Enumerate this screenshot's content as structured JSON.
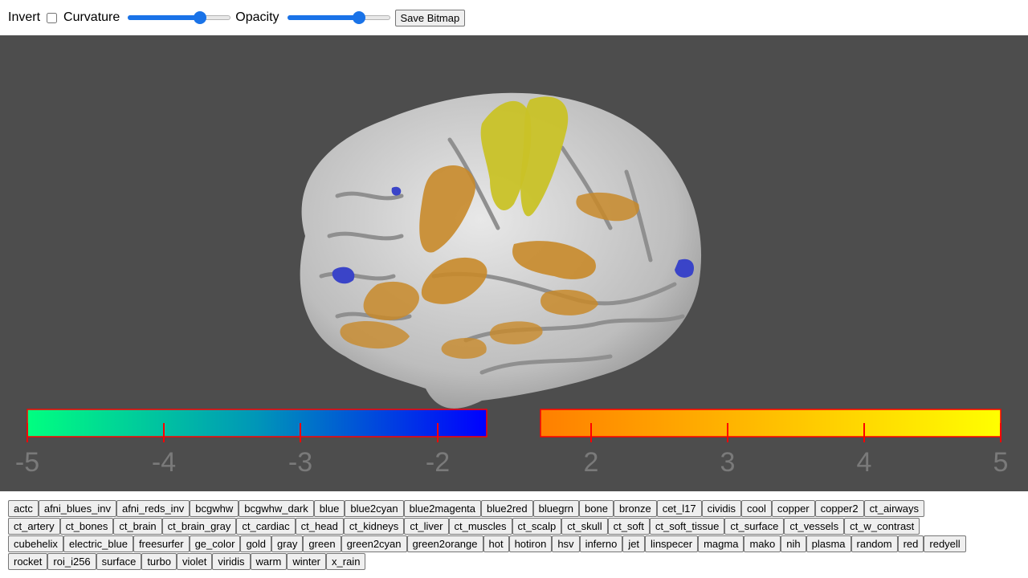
{
  "toolbar": {
    "invert_label": "Invert",
    "curvature_label": "Curvature",
    "curvature_value": 0.7,
    "opacity_label": "Opacity",
    "opacity_value": 0.7,
    "save_label": "Save Bitmap"
  },
  "colorbars": {
    "left": {
      "gradient": [
        "#00ff80",
        "#0000ff"
      ],
      "ticks": [
        "-5",
        "-4",
        "-3",
        "-2"
      ]
    },
    "right": {
      "gradient": [
        "#ff7f00",
        "#ffff00"
      ],
      "ticks": [
        "2",
        "3",
        "4",
        "5"
      ]
    },
    "border_color": "#ff0000",
    "tick_color": "#ff0000"
  },
  "colormaps": [
    [
      "actc",
      "afni_blues_inv",
      "afni_reds_inv",
      "bcgwhw",
      "bcgwhw_dark",
      "blue",
      "blue2cyan",
      "blue2magenta",
      "blue2red",
      "bluegrn",
      "bone",
      "bronze",
      "cet_l17",
      "cividis",
      "cool",
      "copper",
      "copper2",
      "ct_airways"
    ],
    [
      "ct_artery",
      "ct_bones",
      "ct_brain",
      "ct_brain_gray",
      "ct_cardiac",
      "ct_head",
      "ct_kidneys",
      "ct_liver",
      "ct_muscles",
      "ct_scalp",
      "ct_skull",
      "ct_soft",
      "ct_soft_tissue",
      "ct_surface",
      "ct_vessels",
      "ct_w_contrast"
    ],
    [
      "cubehelix",
      "electric_blue",
      "freesurfer",
      "ge_color",
      "gold",
      "gray",
      "green",
      "green2cyan",
      "green2orange",
      "hot",
      "hotiron",
      "hsv",
      "inferno",
      "jet",
      "linspecer",
      "magma",
      "mako",
      "nih",
      "plasma",
      "random",
      "red",
      "redyell"
    ],
    [
      "rocket",
      "roi_i256",
      "surface",
      "turbo",
      "violet",
      "viridis",
      "warm",
      "winter",
      "x_rain"
    ]
  ],
  "colors": {
    "viewer_bg": "#4d4d4d",
    "accent": "#1a73e8"
  }
}
